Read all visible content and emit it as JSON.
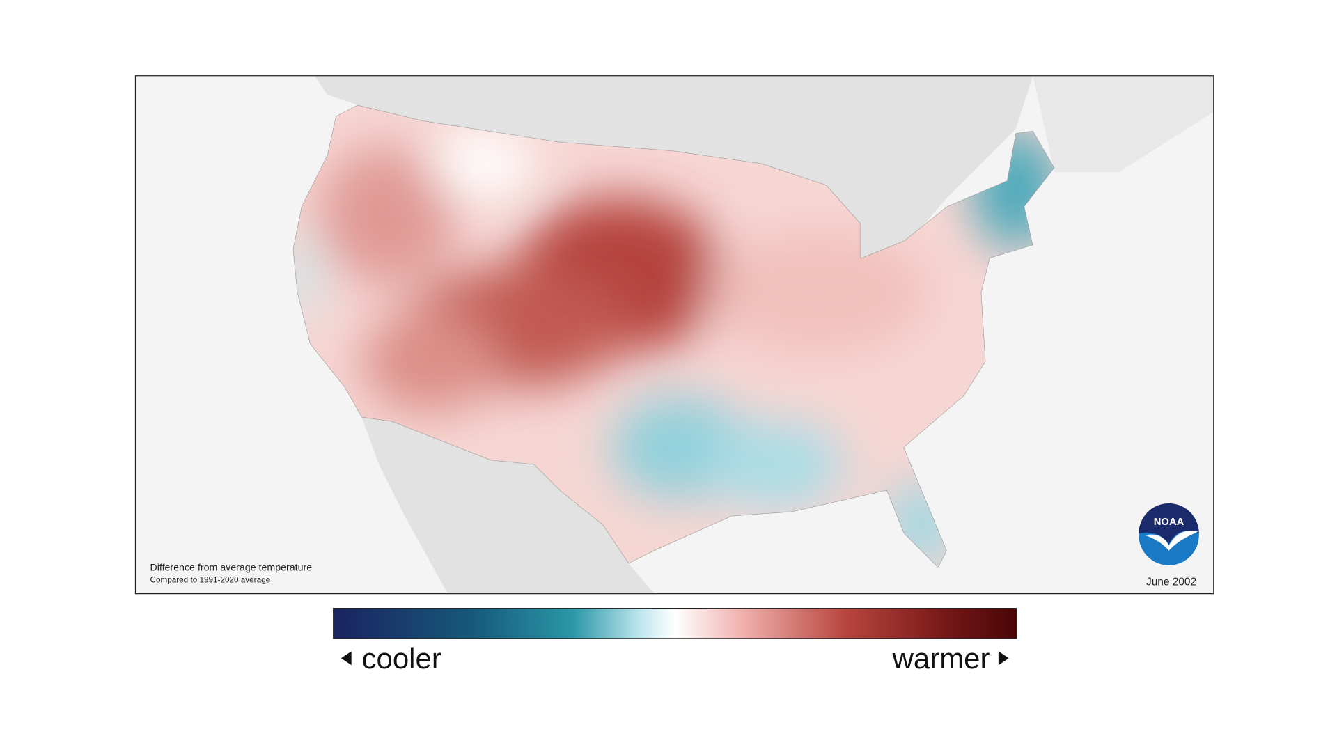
{
  "map": {
    "caption": {
      "line1": "Difference from average temperature",
      "line2": "Compared to 1991-2020 average"
    },
    "date": "June 2002",
    "logo": "NOAA",
    "legend": {
      "low": "cooler",
      "high": "warmer"
    }
  }
}
